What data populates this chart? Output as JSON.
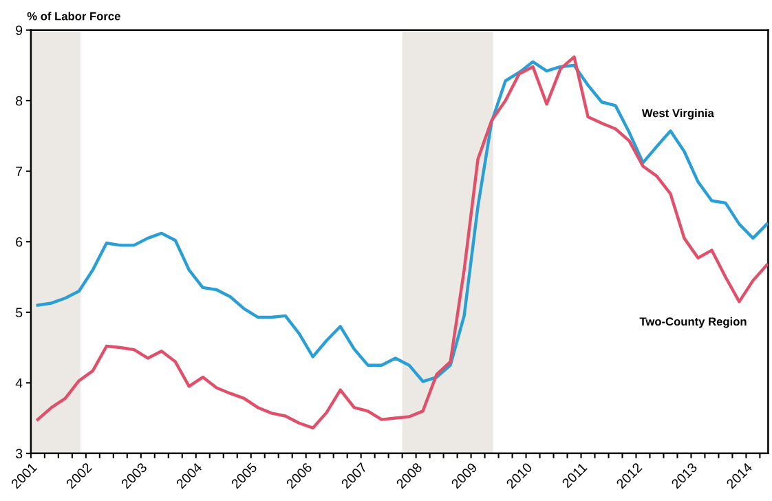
{
  "chart_data": {
    "type": "line",
    "ylabel": "% of Labor Force",
    "x": [
      2001.125,
      2001.375,
      2001.625,
      2001.875,
      2002.125,
      2002.375,
      2002.625,
      2002.875,
      2003.125,
      2003.375,
      2003.625,
      2003.875,
      2004.125,
      2004.375,
      2004.625,
      2004.875,
      2005.125,
      2005.375,
      2005.625,
      2005.875,
      2006.125,
      2006.375,
      2006.625,
      2006.875,
      2007.125,
      2007.375,
      2007.625,
      2007.875,
      2008.125,
      2008.375,
      2008.625,
      2008.875,
      2009.125,
      2009.375,
      2009.625,
      2009.875,
      2010.125,
      2010.375,
      2010.625,
      2010.875,
      2011.125,
      2011.375,
      2011.625,
      2011.875,
      2012.125,
      2012.375,
      2012.625,
      2012.875,
      2013.125,
      2013.375,
      2013.625,
      2013.875,
      2014.125,
      2014.375
    ],
    "series": [
      {
        "name": "West Virginia",
        "color": "#2a9fd6",
        "values": [
          5.1,
          5.13,
          5.2,
          5.3,
          5.6,
          5.98,
          5.95,
          5.95,
          6.05,
          6.12,
          6.02,
          5.6,
          5.35,
          5.32,
          5.22,
          5.05,
          4.93,
          4.93,
          4.95,
          4.7,
          4.37,
          4.6,
          4.8,
          4.48,
          4.25,
          4.25,
          4.35,
          4.25,
          4.02,
          4.08,
          4.25,
          4.95,
          6.5,
          7.7,
          8.28,
          8.4,
          8.55,
          8.42,
          8.48,
          8.5,
          8.22,
          7.98,
          7.93,
          7.55,
          7.12,
          7.35,
          7.57,
          7.28,
          6.85,
          6.58,
          6.55,
          6.25,
          6.05,
          6.25
        ]
      },
      {
        "name": "Two-County Region",
        "color": "#e0506a",
        "values": [
          3.48,
          3.65,
          3.78,
          4.03,
          4.17,
          4.52,
          4.5,
          4.47,
          4.35,
          4.45,
          4.3,
          3.95,
          4.08,
          3.93,
          3.85,
          3.78,
          3.65,
          3.57,
          3.53,
          3.43,
          3.36,
          3.58,
          3.9,
          3.65,
          3.6,
          3.48,
          3.5,
          3.52,
          3.6,
          4.12,
          4.3,
          5.6,
          7.17,
          7.72,
          8.0,
          8.38,
          8.48,
          7.95,
          8.45,
          8.62,
          7.77,
          7.68,
          7.6,
          7.43,
          7.07,
          6.93,
          6.68,
          6.05,
          5.77,
          5.88,
          5.5,
          5.15,
          5.45,
          5.67
        ]
      }
    ],
    "bands": [
      {
        "axis": "x",
        "from": 2001,
        "to": 2001.9,
        "color": "#ece8e4"
      },
      {
        "axis": "x",
        "from": 2007.75,
        "to": 2009.4,
        "color": "#ece8e4"
      }
    ],
    "xlim": [
      2001,
      2014.4
    ],
    "xticks": [
      2001,
      {
        "value": 2001.25,
        "label": null
      },
      {
        "value": 2001.5,
        "label": null
      },
      {
        "value": 2001.75,
        "label": null
      },
      2002,
      {
        "value": 2002.25,
        "label": null
      },
      {
        "value": 2002.5,
        "label": null
      },
      {
        "value": 2002.75,
        "label": null
      },
      2003,
      {
        "value": 2003.25,
        "label": null
      },
      {
        "value": 2003.5,
        "label": null
      },
      {
        "value": 2003.75,
        "label": null
      },
      2004,
      {
        "value": 2004.25,
        "label": null
      },
      {
        "value": 2004.5,
        "label": null
      },
      {
        "value": 2004.75,
        "label": null
      },
      2005,
      {
        "value": 2005.25,
        "label": null
      },
      {
        "value": 2005.5,
        "label": null
      },
      {
        "value": 2005.75,
        "label": null
      },
      2006,
      {
        "value": 2006.25,
        "label": null
      },
      {
        "value": 2006.5,
        "label": null
      },
      {
        "value": 2006.75,
        "label": null
      },
      2007,
      {
        "value": 2007.25,
        "label": null
      },
      {
        "value": 2007.5,
        "label": null
      },
      {
        "value": 2007.75,
        "label": null
      },
      2008,
      {
        "value": 2008.25,
        "label": null
      },
      {
        "value": 2008.5,
        "label": null
      },
      {
        "value": 2008.75,
        "label": null
      },
      2009,
      {
        "value": 2009.25,
        "label": null
      },
      {
        "value": 2009.5,
        "label": null
      },
      {
        "value": 2009.75,
        "label": null
      },
      2010,
      {
        "value": 2010.25,
        "label": null
      },
      {
        "value": 2010.5,
        "label": null
      },
      {
        "value": 2010.75,
        "label": null
      },
      2011,
      {
        "value": 2011.25,
        "label": null
      },
      {
        "value": 2011.5,
        "label": null
      },
      {
        "value": 2011.75,
        "label": null
      },
      2012,
      {
        "value": 2012.25,
        "label": null
      },
      {
        "value": 2012.5,
        "label": null
      },
      {
        "value": 2012.75,
        "label": null
      },
      2013,
      {
        "value": 2013.25,
        "label": null
      },
      {
        "value": 2013.5,
        "label": null
      },
      {
        "value": 2013.75,
        "label": null
      },
      2014,
      {
        "value": 2014.25,
        "label": null
      }
    ],
    "ylim": [
      3,
      9
    ],
    "yticks": [
      3,
      4,
      5,
      6,
      7,
      8,
      9
    ],
    "grid": false,
    "legend": false
  }
}
